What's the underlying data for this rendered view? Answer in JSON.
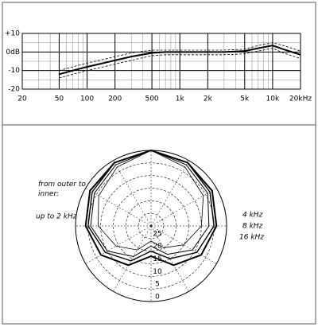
{
  "chart_data": [
    {
      "type": "line",
      "log_x": true,
      "grid": true,
      "minor_grid": true,
      "xlim": [
        20,
        20000
      ],
      "xticks": [
        20,
        50,
        100,
        200,
        500,
        {
          "value": 1000,
          "label": "1k"
        },
        {
          "value": 2000,
          "label": "2k"
        },
        {
          "value": 5000,
          "label": "5k"
        },
        {
          "value": 10000,
          "label": "10k"
        },
        {
          "value": 20000,
          "label": "20kHz"
        }
      ],
      "ylim": [
        -20,
        10
      ],
      "yticks": [
        {
          "value": 10,
          "label": "+10"
        },
        {
          "value": 0,
          "label": "0dB"
        },
        -10,
        -20
      ],
      "x": [
        50,
        70,
        100,
        150,
        200,
        300,
        500,
        700,
        1000,
        2000,
        3000,
        5000,
        7000,
        10000,
        13000,
        20000
      ],
      "series": [
        {
          "color": "#000000",
          "style": "solid",
          "values": [
            -12,
            -10,
            -8,
            -6,
            -4.5,
            -2.5,
            -0.5,
            0,
            0,
            0,
            0,
            0.5,
            2,
            3.5,
            1.5,
            -1.5
          ]
        },
        {
          "color": "#000000",
          "style": "dashed",
          "values": [
            -10,
            -8,
            -6,
            -4,
            -2.5,
            -0.5,
            1,
            1,
            1,
            1,
            1,
            1.5,
            3.5,
            5,
            3.5,
            0.5
          ]
        },
        {
          "color": "#000000",
          "style": "dashed",
          "values": [
            -14,
            -12,
            -10,
            -8,
            -6.5,
            -4.5,
            -2,
            -1.5,
            -1.5,
            -1.5,
            -1.5,
            -1,
            0.5,
            2,
            -0.5,
            -3.5
          ]
        }
      ]
    },
    {
      "type": "polar",
      "legend_title": "from outer to inner:",
      "rlim": [
        0,
        30
      ],
      "rticks": [
        0,
        5,
        10,
        15,
        20,
        25
      ],
      "angles": [
        0,
        30,
        60,
        90,
        120,
        150,
        180,
        210,
        240,
        270,
        300,
        330
      ],
      "series": [
        {
          "name": "up to 2 kHz",
          "color": "#000000",
          "values": [
            0,
            1,
            2,
            4,
            7,
            12,
            18,
            12,
            7,
            4,
            2,
            1
          ]
        },
        {
          "name": "4 kHz",
          "color": "#000000",
          "values": [
            0,
            1,
            3,
            5,
            9,
            15,
            20,
            14,
            9,
            5,
            3,
            1
          ]
        },
        {
          "name": "8 kHz",
          "color": "#000000",
          "values": [
            0,
            2,
            4,
            7,
            11,
            17,
            22,
            16,
            10,
            6,
            4,
            2
          ]
        },
        {
          "name": "16 kHz",
          "color": "#000000",
          "values": [
            0,
            3,
            6,
            10,
            15,
            20,
            24,
            19,
            14,
            9,
            6,
            3
          ]
        }
      ]
    }
  ]
}
